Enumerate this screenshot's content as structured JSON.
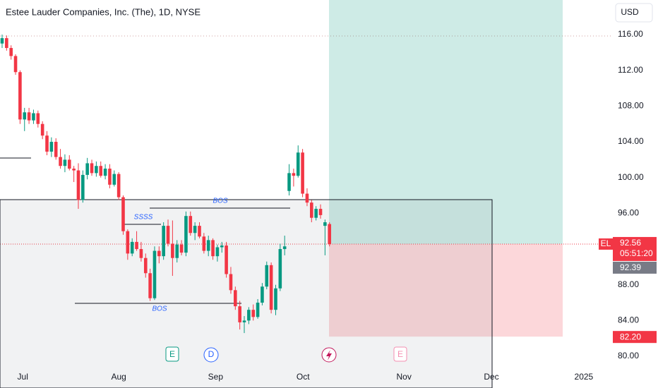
{
  "chart_data": {
    "type": "candlestick",
    "title": "Estee Lauder Companies, Inc. (The), 1D, NYSE",
    "currency": "USD",
    "symbol": "EL",
    "up_color": "#089981",
    "down_color": "#f23645",
    "candles": [
      [
        115,
        116,
        114.5,
        115.6
      ],
      [
        115.6,
        115.9,
        114.2,
        114.5
      ],
      [
        114.5,
        114.8,
        113.2,
        113.6
      ],
      [
        113.6,
        113.8,
        111.5,
        111.8
      ],
      [
        111.8,
        112,
        106,
        106.5
      ],
      [
        106.5,
        107.8,
        105.2,
        107.3
      ],
      [
        107.3,
        107.8,
        106,
        106.4
      ],
      [
        106.4,
        107.6,
        106,
        107.2
      ],
      [
        107.2,
        107.5,
        105.6,
        106
      ],
      [
        106,
        106.3,
        104.3,
        104.7
      ],
      [
        104.7,
        105.2,
        102.5,
        102.9
      ],
      [
        102.9,
        104.5,
        102.3,
        104
      ],
      [
        104,
        104.4,
        102,
        102.3
      ],
      [
        102.3,
        103.2,
        101,
        101.3
      ],
      [
        101.3,
        102.6,
        100.6,
        102
      ],
      [
        102,
        102.5,
        100.8,
        101
      ],
      [
        101,
        101.3,
        99.5,
        100.8
      ],
      [
        100.8,
        101.6,
        96.5,
        97.5
      ],
      [
        97.5,
        100.8,
        97.2,
        100.3
      ],
      [
        100.3,
        102.2,
        99.8,
        101.6
      ],
      [
        101.6,
        102,
        100.2,
        100.5
      ],
      [
        100.5,
        101.8,
        100.1,
        101.3
      ],
      [
        101.3,
        101.8,
        100,
        100.2
      ],
      [
        100.2,
        101.5,
        99.8,
        101
      ],
      [
        101,
        101.5,
        98.8,
        99.2
      ],
      [
        99.2,
        100.8,
        99,
        100.4
      ],
      [
        100.4,
        100.6,
        97.5,
        97.8
      ],
      [
        97.8,
        98,
        93.6,
        94
      ],
      [
        94,
        94.2,
        90.8,
        91.5
      ],
      [
        91.5,
        93.2,
        91.2,
        92.8
      ],
      [
        92.8,
        94,
        91.8,
        92
      ],
      [
        92,
        92.8,
        90.6,
        91
      ],
      [
        91,
        91.5,
        88.8,
        89.3
      ],
      [
        89.3,
        89.8,
        86.2,
        86.5
      ],
      [
        86.5,
        92.3,
        86.3,
        91.8
      ],
      [
        91.8,
        92.3,
        90.4,
        91.2
      ],
      [
        91.2,
        95,
        90.8,
        94.6
      ],
      [
        94.6,
        95.3,
        92.3,
        92.6
      ],
      [
        92.6,
        95.2,
        89,
        91
      ],
      [
        91,
        93,
        90.5,
        92.5
      ],
      [
        92.5,
        93,
        91.3,
        91.6
      ],
      [
        91.6,
        96.2,
        91.2,
        95.7
      ],
      [
        95.7,
        96.2,
        93.5,
        93.8
      ],
      [
        93.8,
        95,
        93,
        94.6
      ],
      [
        94.6,
        95,
        93.2,
        93.4
      ],
      [
        93.4,
        93.8,
        91.5,
        91.8
      ],
      [
        91.8,
        93.5,
        91.2,
        93
      ],
      [
        93,
        93.2,
        90.8,
        91.2
      ],
      [
        91.2,
        92.5,
        90.6,
        92.2
      ],
      [
        92.2,
        92.8,
        91.6,
        92.4
      ],
      [
        92.4,
        92.8,
        88.8,
        89.2
      ],
      [
        89.2,
        90,
        87,
        87.4
      ],
      [
        87.4,
        87.8,
        85.2,
        85.6
      ],
      [
        85.6,
        86.2,
        83,
        83.8
      ],
      [
        83.8,
        84.5,
        82.6,
        84
      ],
      [
        84,
        85.5,
        83.6,
        85.2
      ],
      [
        85.2,
        85.8,
        84,
        84.4
      ],
      [
        84.4,
        86.4,
        84.2,
        86
      ],
      [
        86,
        88.2,
        85.7,
        87.8
      ],
      [
        87.8,
        90.6,
        87.5,
        90.2
      ],
      [
        90.2,
        90.5,
        84.8,
        85.2
      ],
      [
        85.2,
        88,
        84.6,
        87.6
      ],
      [
        87.6,
        92.6,
        87.3,
        92
      ],
      [
        92,
        93.5,
        91.3,
        92.3
      ],
      [
        98.5,
        101.5,
        98,
        100.5
      ],
      [
        100.5,
        101,
        99,
        100.2
      ],
      [
        100.2,
        103.6,
        100,
        102.8
      ],
      [
        102.8,
        103.2,
        97.8,
        98.2
      ],
      [
        98.2,
        98.8,
        96.8,
        97.2
      ],
      [
        97.2,
        97.5,
        95,
        95.5
      ],
      [
        95.5,
        96.8,
        95.2,
        96.5
      ],
      [
        96.5,
        97,
        95.4,
        95.8
      ],
      [
        94.6,
        95.3,
        91.3,
        95
      ],
      [
        94.8,
        95,
        92.3,
        92.56
      ]
    ],
    "xlim": [
      -0.47,
      135.7
    ],
    "xticks": [
      {
        "value": 4.6,
        "label": "Jul"
      },
      {
        "value": 26,
        "label": "Aug"
      },
      {
        "value": 47.6,
        "label": "Sep"
      },
      {
        "value": 67.1,
        "label": "Oct"
      },
      {
        "value": 89.6,
        "label": "Nov"
      },
      {
        "value": 109.1,
        "label": "Dec"
      },
      {
        "value": 129.7,
        "label": "2025"
      }
    ],
    "ylim": [
      78.82,
      119.87
    ],
    "yticks": [
      {
        "value": 80,
        "label": "80.00"
      },
      {
        "value": 84,
        "label": "84.00"
      },
      {
        "value": 88,
        "label": "88.00"
      },
      {
        "value": 92,
        "label": "92.00"
      },
      {
        "value": 96,
        "label": "96.00"
      },
      {
        "value": 100,
        "label": "100.00"
      },
      {
        "value": 104,
        "label": "104.00"
      },
      {
        "value": 108,
        "label": "108.00"
      },
      {
        "value": 112,
        "label": "112.00"
      },
      {
        "value": 116,
        "label": "116.00"
      }
    ],
    "last_price": {
      "value": 92.56,
      "label": "92.56",
      "countdown": "05:51:20"
    },
    "price_labels": [
      {
        "value": 92.39,
        "label": "92.39"
      },
      {
        "value": 82.2,
        "label": "82.20"
      }
    ],
    "annotations": [
      "BOS",
      "SSSS",
      "BOS"
    ],
    "events": [
      "E",
      "D",
      "E"
    ]
  }
}
